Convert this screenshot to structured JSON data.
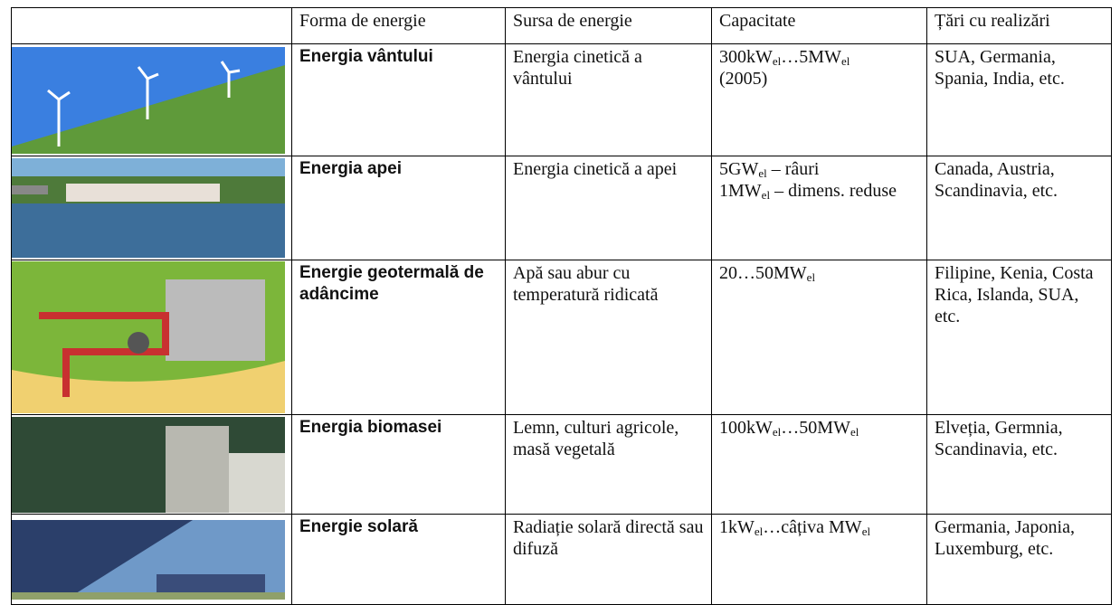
{
  "table": {
    "header": [
      "Forma de energie",
      "Sursa de energie",
      "Capacitate",
      "Țări cu realizări"
    ],
    "rows": [
      {
        "form": "Energia vântului",
        "source": "Energia cinetică a vântului",
        "capacity": [
          [
            {
              "text": "300kW"
            },
            {
              "sub": "el"
            },
            {
              "text": "…5MW"
            },
            {
              "sub": "el"
            }
          ],
          [
            {
              "text": "(2005)"
            }
          ]
        ],
        "countries": "SUA, Germania, Spania, India, etc."
      },
      {
        "form": "Energia apei",
        "source": "Energia cinetică a apei",
        "capacity": [
          [
            {
              "text": "5GW"
            },
            {
              "sub": "el"
            },
            {
              "text": " – râuri"
            }
          ],
          [
            {
              "text": "1MW"
            },
            {
              "sub": "el"
            },
            {
              "text": " – dimens. reduse"
            }
          ]
        ],
        "countries": "Canada, Austria, Scandinavia, etc."
      },
      {
        "form": "Energie geotermală de adâncime",
        "source": "Apă sau abur cu temperatură ridicată",
        "capacity": [
          [
            {
              "text": "20…50MW"
            },
            {
              "sub": "el"
            }
          ]
        ],
        "countries": "Filipine, Kenia, Costa Rica, Islanda, SUA, etc."
      },
      {
        "form": "Energia biomasei",
        "source": "Lemn, culturi agricole, masă vegetală",
        "capacity": [
          [
            {
              "text": "100kW"
            },
            {
              "sub": "el"
            },
            {
              "text": "…50MW"
            },
            {
              "sub": "el"
            }
          ]
        ],
        "countries": "Elveția, Germnia, Scandinavia, etc."
      },
      {
        "form": "Energie solară",
        "source": "Radiație solară directă sau difuză",
        "capacity": [
          [
            {
              "text": "1kW"
            },
            {
              "sub": "el"
            },
            {
              "text": "…câțiva MW"
            },
            {
              "sub": "el"
            }
          ]
        ],
        "countries": "Germania, Japonia, Luxemburg, etc."
      }
    ]
  }
}
